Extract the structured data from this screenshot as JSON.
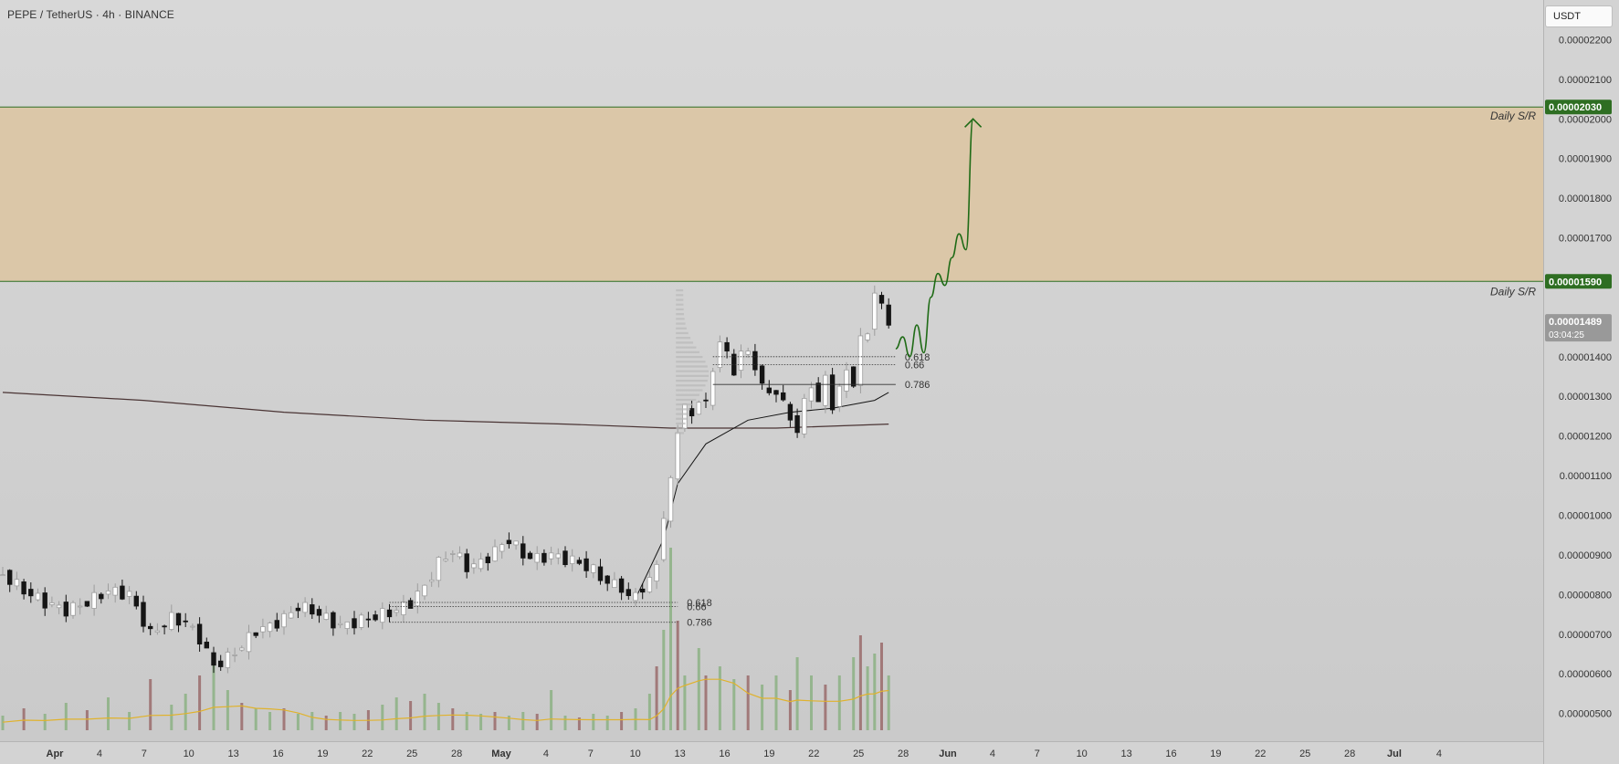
{
  "header": {
    "symbol_title": "PEPE / TetherUS · 4h · BINANCE",
    "currency": "USDT"
  },
  "colors": {
    "up": "#9d9d9d",
    "down": "#151515",
    "zone_fill": "#dcc4a0",
    "zone_line": "#2e6e22",
    "projection": "#1f6b16",
    "volume_up": "#8fb287",
    "volume_down": "#9c7070",
    "volume_ma": "#e0b22c",
    "ema": "#151515",
    "ma": "#4a3434",
    "current_price_bg": "#999999"
  },
  "chart_data": {
    "type": "candlestick",
    "title": "PEPE / TetherUS · 4h · BINANCE",
    "ylim": [
      4.3e-06,
      2.3e-05
    ],
    "y_ticks": [
      {
        "value": 5e-06,
        "label": "0.00000500"
      },
      {
        "value": 6e-06,
        "label": "0.00000600"
      },
      {
        "value": 7e-06,
        "label": "0.00000700"
      },
      {
        "value": 8e-06,
        "label": "0.00000800"
      },
      {
        "value": 9e-06,
        "label": "0.00000900"
      },
      {
        "value": 1e-05,
        "label": "0.00001000"
      },
      {
        "value": 1.1e-05,
        "label": "0.00001100"
      },
      {
        "value": 1.2e-05,
        "label": "0.00001200"
      },
      {
        "value": 1.3e-05,
        "label": "0.00001300"
      },
      {
        "value": 1.4e-05,
        "label": "0.00001400"
      },
      {
        "value": 1.7e-05,
        "label": "0.00001700"
      },
      {
        "value": 1.8e-05,
        "label": "0.00001800"
      },
      {
        "value": 1.9e-05,
        "label": "0.00001900"
      },
      {
        "value": 2e-05,
        "label": "0.00002000"
      },
      {
        "value": 2.1e-05,
        "label": "0.00002100"
      },
      {
        "value": 2.2e-05,
        "label": "0.00002200"
      }
    ],
    "x_ticks": [
      {
        "label": "Apr",
        "bold": true
      },
      {
        "label": "4"
      },
      {
        "label": "7"
      },
      {
        "label": "10"
      },
      {
        "label": "13"
      },
      {
        "label": "16"
      },
      {
        "label": "19"
      },
      {
        "label": "22"
      },
      {
        "label": "25"
      },
      {
        "label": "28"
      },
      {
        "label": "May",
        "bold": true
      },
      {
        "label": "4"
      },
      {
        "label": "7"
      },
      {
        "label": "10"
      },
      {
        "label": "13"
      },
      {
        "label": "16"
      },
      {
        "label": "19"
      },
      {
        "label": "22"
      },
      {
        "label": "25"
      },
      {
        "label": "28"
      },
      {
        "label": "Jun",
        "bold": true
      },
      {
        "label": "4"
      },
      {
        "label": "7"
      },
      {
        "label": "10"
      },
      {
        "label": "13"
      },
      {
        "label": "16"
      },
      {
        "label": "19"
      },
      {
        "label": "22"
      },
      {
        "label": "25"
      },
      {
        "label": "28"
      },
      {
        "label": "Jul",
        "bold": true
      },
      {
        "label": "4"
      }
    ],
    "price_path": [
      [
        0,
        8.5e-06
      ],
      [
        3,
        8.1e-06
      ],
      [
        6,
        7.8e-06
      ],
      [
        9,
        7.6e-06
      ],
      [
        12,
        7.8e-06
      ],
      [
        15,
        8.1e-06
      ],
      [
        18,
        8e-06
      ],
      [
        21,
        7e-06
      ],
      [
        24,
        7.4e-06
      ],
      [
        26,
        7.3e-06
      ],
      [
        28,
        6.9e-06
      ],
      [
        30,
        6.2e-06
      ],
      [
        32,
        6.4e-06
      ],
      [
        34,
        6.7e-06
      ],
      [
        36,
        7.1e-06
      ],
      [
        38,
        7.2e-06
      ],
      [
        40,
        7.4e-06
      ],
      [
        42,
        7.7e-06
      ],
      [
        44,
        7.6e-06
      ],
      [
        46,
        7.4e-06
      ],
      [
        48,
        7.2e-06
      ],
      [
        50,
        7.3e-06
      ],
      [
        52,
        7.4e-06
      ],
      [
        54,
        7.5e-06
      ],
      [
        56,
        7.6e-06
      ],
      [
        58,
        7.8e-06
      ],
      [
        60,
        8.2e-06
      ],
      [
        62,
        8.8e-06
      ],
      [
        64,
        9.1e-06
      ],
      [
        66,
        8.7e-06
      ],
      [
        68,
        8.8e-06
      ],
      [
        70,
        9.1e-06
      ],
      [
        72,
        9.4e-06
      ],
      [
        74,
        9e-06
      ],
      [
        76,
        8.9e-06
      ],
      [
        78,
        9e-06
      ],
      [
        80,
        8.9e-06
      ],
      [
        82,
        8.8e-06
      ],
      [
        84,
        8.6e-06
      ],
      [
        86,
        8.3e-06
      ],
      [
        88,
        8.2e-06
      ],
      [
        89,
        7.9e-06
      ],
      [
        90,
        8e-06
      ],
      [
        91,
        8.2e-06
      ],
      [
        92,
        8.3e-06
      ],
      [
        93,
        8.8e-06
      ],
      [
        94,
        1e-05
      ],
      [
        95,
        1.08e-05
      ],
      [
        96,
        1.22e-05
      ],
      [
        97,
        1.28e-05
      ],
      [
        98,
        1.24e-05
      ],
      [
        99,
        1.3e-05
      ],
      [
        100,
        1.28e-05
      ],
      [
        101,
        1.36e-05
      ],
      [
        102,
        1.45e-05
      ],
      [
        103,
        1.4e-05
      ],
      [
        104,
        1.36e-05
      ],
      [
        105,
        1.42e-05
      ],
      [
        106,
        1.4e-05
      ],
      [
        107,
        1.38e-05
      ],
      [
        108,
        1.33e-05
      ],
      [
        109,
        1.3e-05
      ],
      [
        110,
        1.32e-05
      ],
      [
        111,
        1.28e-05
      ],
      [
        112,
        1.24e-05
      ],
      [
        113,
        1.22e-05
      ],
      [
        114,
        1.28e-05
      ],
      [
        115,
        1.33e-05
      ],
      [
        116,
        1.29e-05
      ],
      [
        117,
        1.34e-05
      ],
      [
        118,
        1.28e-05
      ],
      [
        119,
        1.32e-05
      ],
      [
        120,
        1.36e-05
      ],
      [
        121,
        1.34e-05
      ],
      [
        122,
        1.44e-05
      ],
      [
        123,
        1.46e-05
      ],
      [
        124,
        1.57e-05
      ],
      [
        125,
        1.52e-05
      ],
      [
        126,
        1.49e-05
      ]
    ],
    "volume": [
      [
        0,
        0.08
      ],
      [
        3,
        0.12
      ],
      [
        6,
        0.09
      ],
      [
        9,
        0.15
      ],
      [
        12,
        0.11
      ],
      [
        15,
        0.18
      ],
      [
        18,
        0.1
      ],
      [
        21,
        0.28
      ],
      [
        24,
        0.14
      ],
      [
        26,
        0.2
      ],
      [
        28,
        0.3
      ],
      [
        30,
        0.4
      ],
      [
        32,
        0.22
      ],
      [
        34,
        0.15
      ],
      [
        36,
        0.12
      ],
      [
        38,
        0.1
      ],
      [
        40,
        0.12
      ],
      [
        42,
        0.09
      ],
      [
        44,
        0.1
      ],
      [
        46,
        0.08
      ],
      [
        48,
        0.1
      ],
      [
        50,
        0.09
      ],
      [
        52,
        0.11
      ],
      [
        54,
        0.14
      ],
      [
        56,
        0.18
      ],
      [
        58,
        0.16
      ],
      [
        60,
        0.2
      ],
      [
        62,
        0.15
      ],
      [
        64,
        0.12
      ],
      [
        66,
        0.1
      ],
      [
        68,
        0.09
      ],
      [
        70,
        0.1
      ],
      [
        72,
        0.08
      ],
      [
        74,
        0.1
      ],
      [
        76,
        0.09
      ],
      [
        78,
        0.22
      ],
      [
        80,
        0.08
      ],
      [
        82,
        0.07
      ],
      [
        84,
        0.09
      ],
      [
        86,
        0.08
      ],
      [
        88,
        0.1
      ],
      [
        90,
        0.12
      ],
      [
        92,
        0.2
      ],
      [
        93,
        0.35
      ],
      [
        94,
        0.55
      ],
      [
        95,
        1.0
      ],
      [
        96,
        0.6
      ],
      [
        97,
        0.3
      ],
      [
        99,
        0.45
      ],
      [
        100,
        0.3
      ],
      [
        102,
        0.35
      ],
      [
        104,
        0.28
      ],
      [
        106,
        0.3
      ],
      [
        108,
        0.25
      ],
      [
        110,
        0.3
      ],
      [
        112,
        0.22
      ],
      [
        113,
        0.4
      ],
      [
        115,
        0.3
      ],
      [
        117,
        0.25
      ],
      [
        119,
        0.3
      ],
      [
        121,
        0.4
      ],
      [
        122,
        0.52
      ],
      [
        123,
        0.35
      ],
      [
        124,
        0.42
      ],
      [
        125,
        0.48
      ],
      [
        126,
        0.3
      ]
    ],
    "support_resistance_zone": {
      "upper": 2.03e-05,
      "upper_label": "0.00002030",
      "lower": 1.59e-05,
      "lower_label": "0.00001590",
      "label": "Daily S/R"
    },
    "current_price": {
      "value": 1.489e-05,
      "label": "0.00001489",
      "countdown": "03:04:25"
    },
    "fib_levels": [
      {
        "group": "lower",
        "label": "0.618",
        "value": 7.8e-06
      },
      {
        "group": "lower",
        "label": "0.66",
        "value": 7.7e-06
      },
      {
        "group": "lower",
        "label": "0.786",
        "value": 7.3e-06
      },
      {
        "group": "upper",
        "label": "0.618",
        "value": 1.4e-05
      },
      {
        "group": "upper",
        "label": "0.66",
        "value": 1.38e-05
      },
      {
        "group": "upper",
        "label": "0.786",
        "value": 1.33e-05
      }
    ],
    "projection_path": [
      [
        127,
        1.42e-05
      ],
      [
        128,
        1.45e-05
      ],
      [
        129,
        1.4e-05
      ],
      [
        130,
        1.48e-05
      ],
      [
        131,
        1.41e-05
      ],
      [
        132,
        1.55e-05
      ],
      [
        133,
        1.61e-05
      ],
      [
        134,
        1.58e-05
      ],
      [
        135,
        1.65e-05
      ],
      [
        136,
        1.71e-05
      ],
      [
        137,
        1.67e-05
      ],
      [
        138,
        2e-05
      ]
    ]
  }
}
